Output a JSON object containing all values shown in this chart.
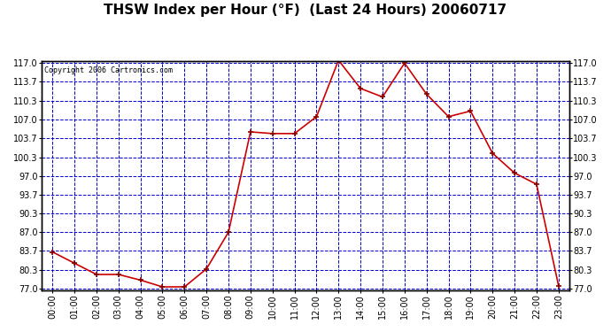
{
  "title": "THSW Index per Hour (°F)  (Last 24 Hours) 20060717",
  "copyright": "Copyright 2006 Cartronics.com",
  "hours": [
    "00:00",
    "01:00",
    "02:00",
    "03:00",
    "04:00",
    "05:00",
    "06:00",
    "07:00",
    "08:00",
    "09:00",
    "10:00",
    "11:00",
    "12:00",
    "13:00",
    "14:00",
    "15:00",
    "16:00",
    "17:00",
    "18:00",
    "19:00",
    "20:00",
    "21:00",
    "22:00",
    "23:00"
  ],
  "values": [
    83.5,
    81.5,
    79.5,
    79.5,
    78.5,
    77.3,
    77.3,
    80.5,
    87.0,
    104.8,
    104.5,
    104.5,
    107.5,
    117.5,
    112.5,
    111.0,
    117.0,
    111.5,
    107.5,
    108.5,
    101.0,
    97.5,
    95.5,
    77.5
  ],
  "ylim_min": 77.0,
  "ylim_max": 117.0,
  "yticks": [
    77.0,
    80.3,
    83.7,
    87.0,
    90.3,
    93.7,
    97.0,
    100.3,
    103.7,
    107.0,
    110.3,
    113.7,
    117.0
  ],
  "line_color": "#cc0000",
  "marker_color": "#880000",
  "bg_color": "#ffffff",
  "fig_bg_color": "#ffffff",
  "grid_color": "#0000cc",
  "title_color": "#000000",
  "copyright_color": "#000000",
  "tick_label_color": "#000000",
  "title_fontsize": 11,
  "copyright_fontsize": 6,
  "tick_fontsize": 7,
  "xlabel_rotation": 90
}
